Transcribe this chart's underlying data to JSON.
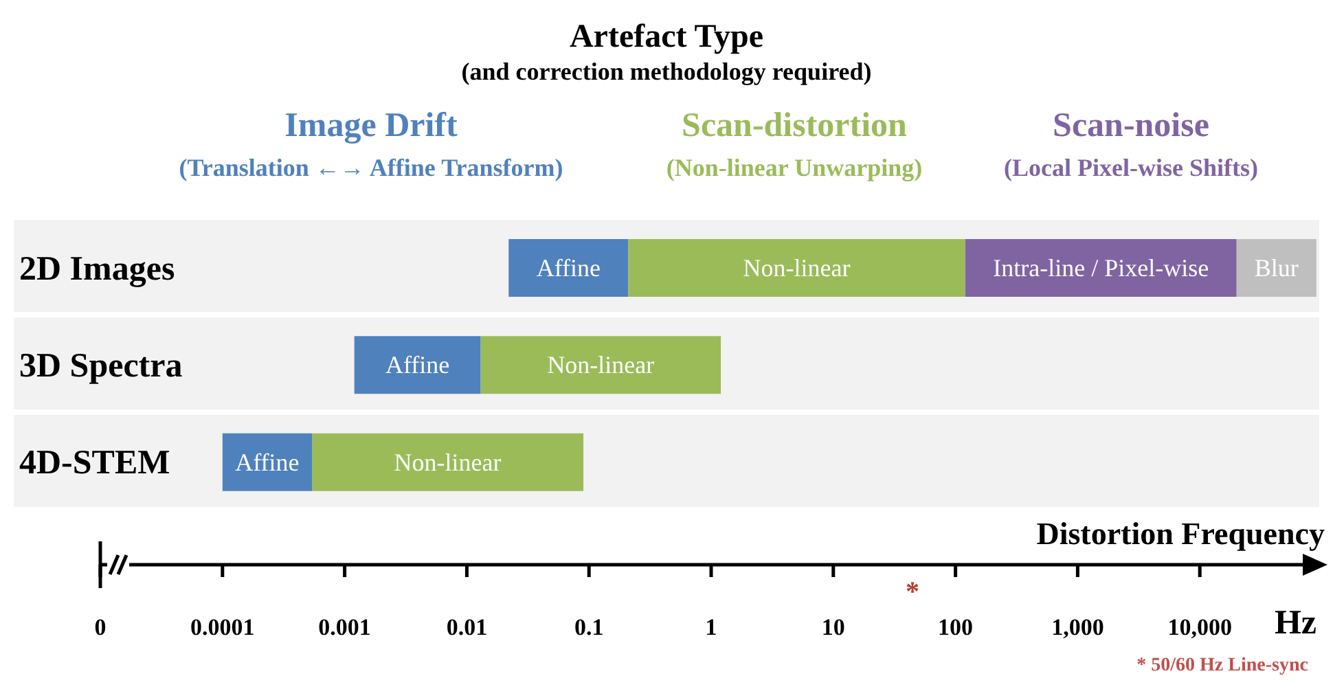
{
  "chart_data": {
    "type": "bar",
    "orientation": "horizontal",
    "title": "Artefact Type",
    "subtitle": "(and correction methodology required)",
    "xlabel": "Distortion Frequency",
    "categories": [
      "2D Images",
      "3D Spectra",
      "4D-STEM"
    ],
    "series": [
      {
        "name": "Affine",
        "color": "#4f81bd",
        "base": [
          0.022,
          0.0012,
          0.0001
        ],
        "values": [
          0.188,
          0.0118,
          0.00044
        ]
      },
      {
        "name": "Non-linear",
        "color": "#9bbb59",
        "base": [
          0.21,
          0.013,
          0.00054
        ],
        "values": [
          119.79,
          1.187,
          0.08946
        ]
      },
      {
        "name": "Intra-line / Pixel-wise",
        "color": "#8064a2",
        "base": [
          120,
          null,
          null
        ],
        "values": [
          19880,
          null,
          null
        ]
      },
      {
        "name": "Blur",
        "color": "#bfbfbf",
        "base": [
          20000,
          null,
          null
        ],
        "values": [
          70000,
          null,
          null
        ]
      }
    ],
    "xlim": [
      1e-05,
      100000
    ],
    "xticks": [
      {
        "value": 1e-05,
        "label": "0"
      },
      0.0001,
      0.001,
      0.01,
      0.1,
      1,
      10,
      100,
      {
        "value": 1000,
        "label": "1,000"
      },
      {
        "value": 10000,
        "label": "10,000"
      }
    ],
    "log": "x",
    "grid": false,
    "legend": false,
    "annotations": [
      "Image Drift",
      "(Translation ←→ Affine Transform)",
      "Scan-distortion",
      "(Non-linear Unwarping)",
      "Scan-noise",
      "(Local Pixel-wise Shifts)",
      "Hz",
      "*",
      "* 50/60 Hz Line-sync"
    ]
  }
}
